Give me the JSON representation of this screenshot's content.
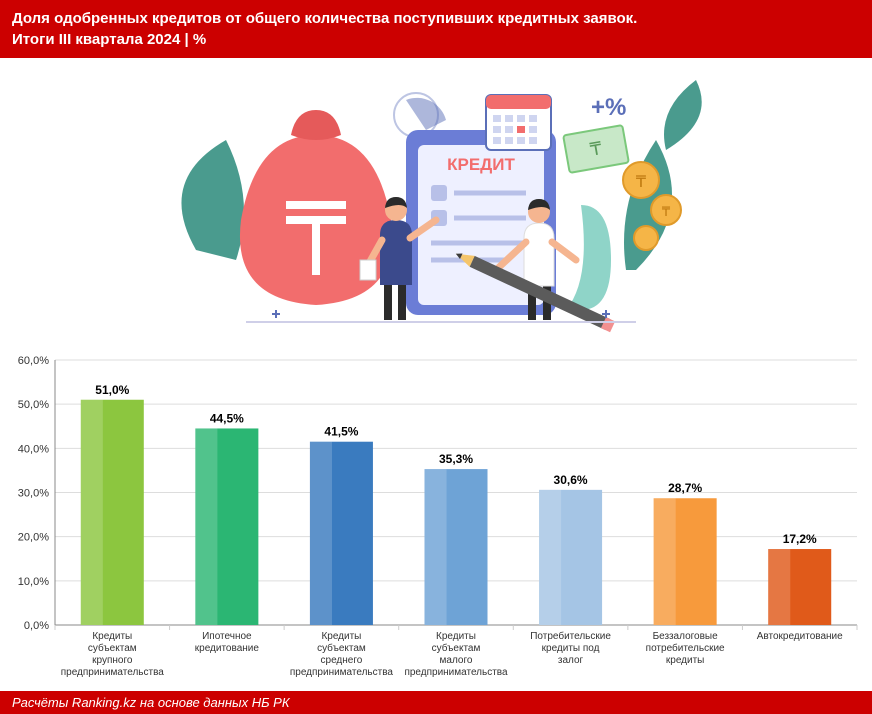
{
  "header": {
    "line1": "Доля одобренных кредитов от общего количества поступивших кредитных заявок.",
    "line2": "Итоги III квартала 2024 | %"
  },
  "footer": {
    "text": "Расчёты Ranking.kz на основе данных НБ РК"
  },
  "illustration": {
    "label_credit": "КРЕДИТ",
    "colors": {
      "bag": "#f26d6d",
      "bag_top": "#e55a5a",
      "clipboard": "#6b7dd6",
      "clipboard_inner": "#eef0ff",
      "leaf": "#4a9b8e",
      "coin": "#f5b547",
      "calendar_frame": "#ffffff",
      "calendar_top": "#f26d6d",
      "pie_slice": "#5b6fb8",
      "pencil_body": "#5b5b5b",
      "pencil_tip": "#f5c56b",
      "person1_shirt": "#3b4a8c",
      "person1_pants": "#2b2b2b",
      "person2_shirt": "#ffffff",
      "person2_pants": "#2b2b2b",
      "skin": "#f5b590",
      "hair": "#2b2b2b",
      "money": "#7bc87b"
    }
  },
  "chart": {
    "type": "bar",
    "ylim": [
      0,
      60
    ],
    "ytick_step": 10,
    "ytick_format_suffix": ",0%",
    "background_color": "#ffffff",
    "grid_color": "#dddddd",
    "axis_color": "#888888",
    "label_fontsize": 10,
    "value_fontsize": 12,
    "axis_fontsize": 11,
    "bar_width_ratio": 0.55,
    "categories": [
      "Кредиты субъектам крупного предпринимательства",
      "Ипотечное кредитование",
      "Кредиты субъектам среднего предпринимательства",
      "Кредиты субъектам малого предпринимательства",
      "Потребительские кредиты под залог",
      "Беззалоговые потребительские кредиты",
      "Автокредитование"
    ],
    "values": [
      51.0,
      44.5,
      41.5,
      35.3,
      30.6,
      28.7,
      17.2
    ],
    "value_labels": [
      "51,0%",
      "44,5%",
      "41,5%",
      "35,3%",
      "30,6%",
      "28,7%",
      "17,2%"
    ],
    "bar_colors": [
      "#8cc63f",
      "#2bb673",
      "#3a7bbf",
      "#6ea3d6",
      "#a5c5e5",
      "#f79a3c",
      "#e05a1a"
    ]
  }
}
